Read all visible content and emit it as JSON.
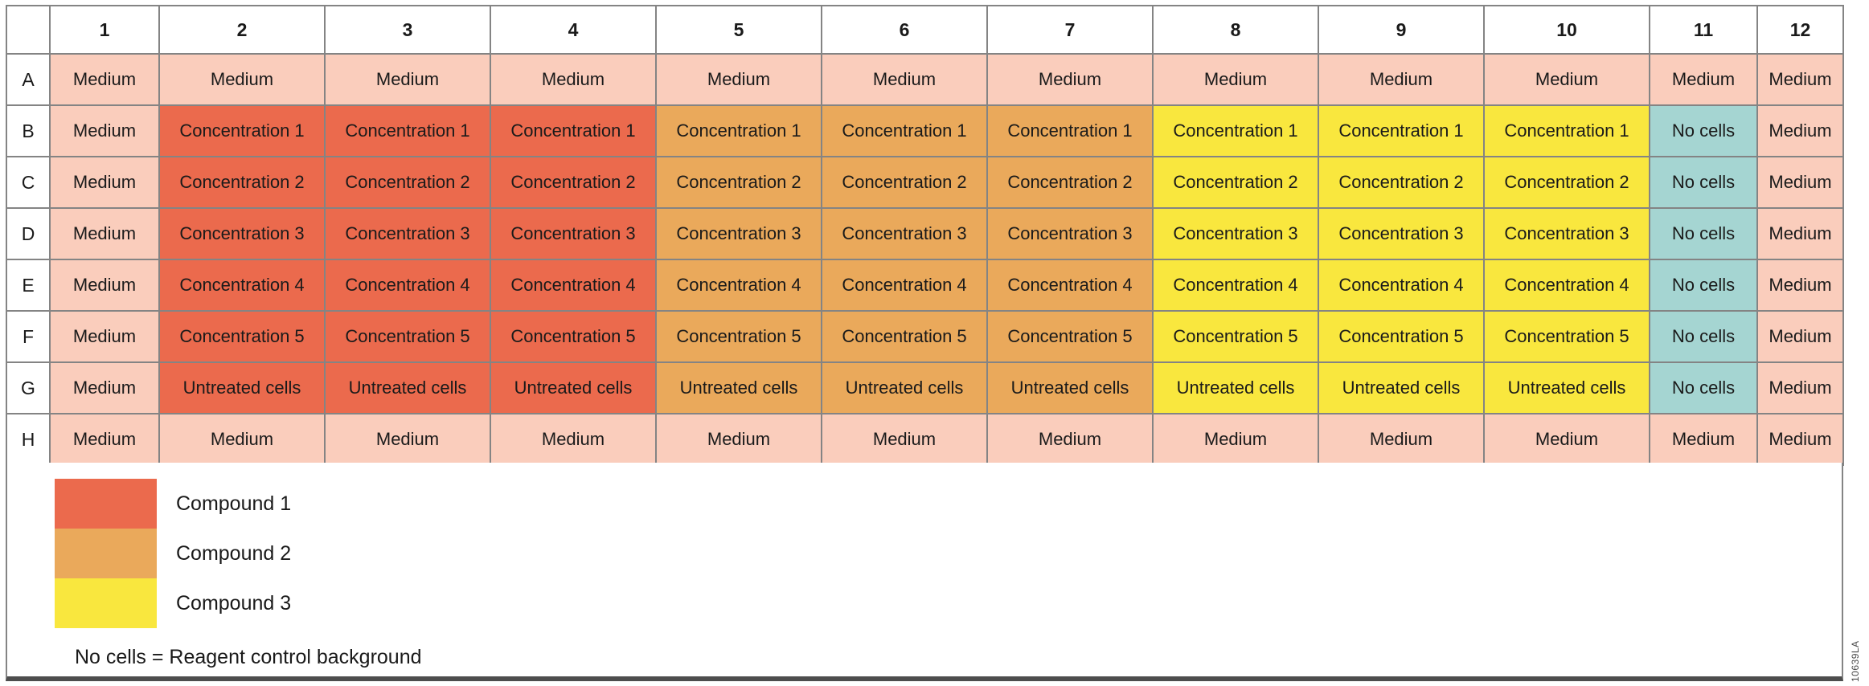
{
  "plate": {
    "corner_label": "",
    "column_headers": [
      "1",
      "2",
      "3",
      "4",
      "5",
      "6",
      "7",
      "8",
      "9",
      "10",
      "11",
      "12"
    ],
    "row_headers": [
      "A",
      "B",
      "C",
      "D",
      "E",
      "F",
      "G",
      "H"
    ],
    "rows": [
      {
        "row": "A",
        "cells": [
          {
            "text": "Medium",
            "type": "medium"
          },
          {
            "text": "Medium",
            "type": "medium"
          },
          {
            "text": "Medium",
            "type": "medium"
          },
          {
            "text": "Medium",
            "type": "medium"
          },
          {
            "text": "Medium",
            "type": "medium"
          },
          {
            "text": "Medium",
            "type": "medium"
          },
          {
            "text": "Medium",
            "type": "medium"
          },
          {
            "text": "Medium",
            "type": "medium"
          },
          {
            "text": "Medium",
            "type": "medium"
          },
          {
            "text": "Medium",
            "type": "medium"
          },
          {
            "text": "Medium",
            "type": "medium"
          },
          {
            "text": "Medium",
            "type": "medium"
          }
        ]
      },
      {
        "row": "B",
        "cells": [
          {
            "text": "Medium",
            "type": "medium"
          },
          {
            "text": "Concentration 1",
            "type": "compound_1"
          },
          {
            "text": "Concentration 1",
            "type": "compound_1"
          },
          {
            "text": "Concentration 1",
            "type": "compound_1"
          },
          {
            "text": "Concentration 1",
            "type": "compound_2"
          },
          {
            "text": "Concentration 1",
            "type": "compound_2"
          },
          {
            "text": "Concentration 1",
            "type": "compound_2"
          },
          {
            "text": "Concentration 1",
            "type": "compound_3"
          },
          {
            "text": "Concentration 1",
            "type": "compound_3"
          },
          {
            "text": "Concentration 1",
            "type": "compound_3"
          },
          {
            "text": "No cells",
            "type": "no_cells"
          },
          {
            "text": "Medium",
            "type": "medium"
          }
        ]
      },
      {
        "row": "C",
        "cells": [
          {
            "text": "Medium",
            "type": "medium"
          },
          {
            "text": "Concentration 2",
            "type": "compound_1"
          },
          {
            "text": "Concentration 2",
            "type": "compound_1"
          },
          {
            "text": "Concentration 2",
            "type": "compound_1"
          },
          {
            "text": "Concentration 2",
            "type": "compound_2"
          },
          {
            "text": "Concentration 2",
            "type": "compound_2"
          },
          {
            "text": "Concentration 2",
            "type": "compound_2"
          },
          {
            "text": "Concentration 2",
            "type": "compound_3"
          },
          {
            "text": "Concentration 2",
            "type": "compound_3"
          },
          {
            "text": "Concentration 2",
            "type": "compound_3"
          },
          {
            "text": "No cells",
            "type": "no_cells"
          },
          {
            "text": "Medium",
            "type": "medium"
          }
        ]
      },
      {
        "row": "D",
        "cells": [
          {
            "text": "Medium",
            "type": "medium"
          },
          {
            "text": "Concentration 3",
            "type": "compound_1"
          },
          {
            "text": "Concentration 3",
            "type": "compound_1"
          },
          {
            "text": "Concentration 3",
            "type": "compound_1"
          },
          {
            "text": "Concentration 3",
            "type": "compound_2"
          },
          {
            "text": "Concentration 3",
            "type": "compound_2"
          },
          {
            "text": "Concentration 3",
            "type": "compound_2"
          },
          {
            "text": "Concentration 3",
            "type": "compound_3"
          },
          {
            "text": "Concentration 3",
            "type": "compound_3"
          },
          {
            "text": "Concentration 3",
            "type": "compound_3"
          },
          {
            "text": "No cells",
            "type": "no_cells"
          },
          {
            "text": "Medium",
            "type": "medium"
          }
        ]
      },
      {
        "row": "E",
        "cells": [
          {
            "text": "Medium",
            "type": "medium"
          },
          {
            "text": "Concentration 4",
            "type": "compound_1"
          },
          {
            "text": "Concentration 4",
            "type": "compound_1"
          },
          {
            "text": "Concentration 4",
            "type": "compound_1"
          },
          {
            "text": "Concentration 4",
            "type": "compound_2"
          },
          {
            "text": "Concentration 4",
            "type": "compound_2"
          },
          {
            "text": "Concentration 4",
            "type": "compound_2"
          },
          {
            "text": "Concentration 4",
            "type": "compound_3"
          },
          {
            "text": "Concentration 4",
            "type": "compound_3"
          },
          {
            "text": "Concentration 4",
            "type": "compound_3"
          },
          {
            "text": "No cells",
            "type": "no_cells"
          },
          {
            "text": "Medium",
            "type": "medium"
          }
        ]
      },
      {
        "row": "F",
        "cells": [
          {
            "text": "Medium",
            "type": "medium"
          },
          {
            "text": "Concentration 5",
            "type": "compound_1"
          },
          {
            "text": "Concentration 5",
            "type": "compound_1"
          },
          {
            "text": "Concentration 5",
            "type": "compound_1"
          },
          {
            "text": "Concentration 5",
            "type": "compound_2"
          },
          {
            "text": "Concentration 5",
            "type": "compound_2"
          },
          {
            "text": "Concentration 5",
            "type": "compound_2"
          },
          {
            "text": "Concentration 5",
            "type": "compound_3"
          },
          {
            "text": "Concentration 5",
            "type": "compound_3"
          },
          {
            "text": "Concentration 5",
            "type": "compound_3"
          },
          {
            "text": "No cells",
            "type": "no_cells"
          },
          {
            "text": "Medium",
            "type": "medium"
          }
        ]
      },
      {
        "row": "G",
        "cells": [
          {
            "text": "Medium",
            "type": "medium"
          },
          {
            "text": "Untreated cells",
            "type": "compound_1"
          },
          {
            "text": "Untreated cells",
            "type": "compound_1"
          },
          {
            "text": "Untreated cells",
            "type": "compound_1"
          },
          {
            "text": "Untreated cells",
            "type": "compound_2"
          },
          {
            "text": "Untreated cells",
            "type": "compound_2"
          },
          {
            "text": "Untreated cells",
            "type": "compound_2"
          },
          {
            "text": "Untreated cells",
            "type": "compound_3"
          },
          {
            "text": "Untreated cells",
            "type": "compound_3"
          },
          {
            "text": "Untreated cells",
            "type": "compound_3"
          },
          {
            "text": "No cells",
            "type": "no_cells"
          },
          {
            "text": "Medium",
            "type": "medium"
          }
        ]
      },
      {
        "row": "H",
        "cells": [
          {
            "text": "Medium",
            "type": "medium"
          },
          {
            "text": "Medium",
            "type": "medium"
          },
          {
            "text": "Medium",
            "type": "medium"
          },
          {
            "text": "Medium",
            "type": "medium"
          },
          {
            "text": "Medium",
            "type": "medium"
          },
          {
            "text": "Medium",
            "type": "medium"
          },
          {
            "text": "Medium",
            "type": "medium"
          },
          {
            "text": "Medium",
            "type": "medium"
          },
          {
            "text": "Medium",
            "type": "medium"
          },
          {
            "text": "Medium",
            "type": "medium"
          },
          {
            "text": "Medium",
            "type": "medium"
          },
          {
            "text": "Medium",
            "type": "medium"
          }
        ]
      }
    ]
  },
  "colors": {
    "medium": "#FACDBC",
    "compound_1": "#EB6A4D",
    "compound_2": "#EAA95B",
    "compound_3": "#F9E73E",
    "no_cells": "#A5D5D2",
    "grid_line": "#848484",
    "bottom_bar": "#4D4D4D"
  },
  "legend": {
    "items": [
      {
        "label": "Compound 1",
        "color_key": "compound_1"
      },
      {
        "label": "Compound 2",
        "color_key": "compound_2"
      },
      {
        "label": "Compound 3",
        "color_key": "compound_3"
      }
    ],
    "note": "No cells = Reagent control background"
  },
  "footer": {
    "document_id": "10639LA"
  }
}
